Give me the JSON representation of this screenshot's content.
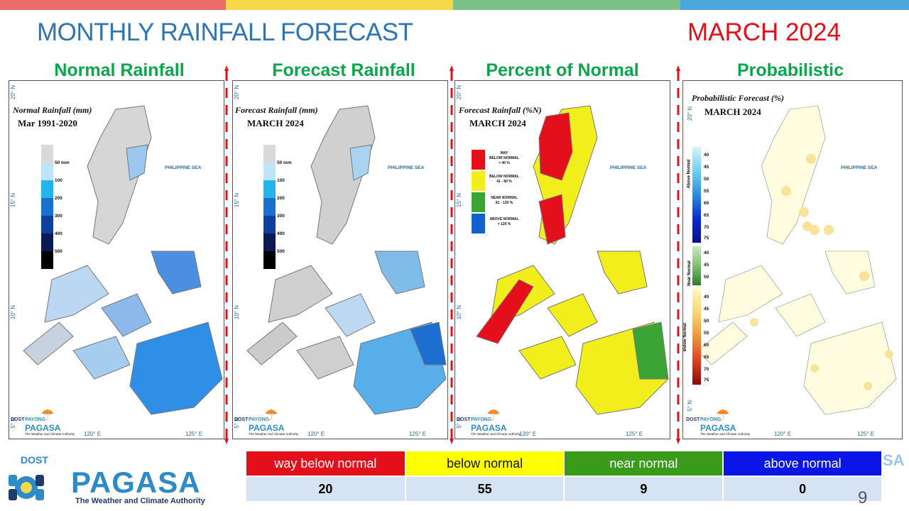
{
  "header": {
    "title": "MONTHLY RAINFALL FORECAST",
    "date": "MARCH 2024",
    "stripe_colors": [
      "#ec6b6b",
      "#f5d94b",
      "#7cc08a",
      "#4aa8dc"
    ]
  },
  "panels": [
    {
      "title": "Normal Rainfall",
      "map_title": "Normal Rainfall (mm)",
      "map_sub": "Mar 1991-2020"
    },
    {
      "title": "Forecast Rainfall",
      "map_title": "Forecast Rainfall (mm)",
      "map_sub": "MARCH 2024"
    },
    {
      "title": "Percent of Normal",
      "map_title": "Forecast Rainfall (%N)",
      "map_sub": "MARCH 2024"
    },
    {
      "title": "Probabilistic",
      "map_title": "Probabilistic Forecast (%)",
      "map_sub": "MARCH 2024"
    }
  ],
  "map": {
    "sea_label": "PHILIPPINE SEA",
    "lat_20": "20° N",
    "lat_15": "15° N",
    "lat_10": "10° N",
    "lat_5": "5° N",
    "lon_120": "120° E",
    "lon_125": "125° E"
  },
  "rain_legend": {
    "labels": [
      "50 mm",
      "100",
      "200",
      "300",
      "400",
      "500"
    ],
    "colors": [
      "#d9d9d9",
      "#bfe3f7",
      "#22b5ea",
      "#1a6fd0",
      "#0f3f9e",
      "#0b1a55",
      "#000000"
    ]
  },
  "pct_legend": [
    {
      "l1": "WAY",
      "l2": "BELOW NORMAL",
      "l3": "< 40 %",
      "color": "#e3101b"
    },
    {
      "l1": "BELOW NORMAL",
      "l2": "41 - 80 %",
      "l3": "",
      "color": "#f2ee1c"
    },
    {
      "l1": "NEAR NORMAL",
      "l2": "81 - 120 %",
      "l3": "",
      "color": "#3aa534"
    },
    {
      "l1": "ABOVE NORMAL",
      "l2": "> 120 %",
      "l3": "",
      "color": "#1560c9"
    }
  ],
  "prob_legend": {
    "above_label": "Above Normal",
    "near_label": "Near Normal",
    "below_label": "Below Normal",
    "above_values": [
      "40",
      "45",
      "50",
      "55",
      "60",
      "65",
      "70",
      "75"
    ],
    "near_values": [
      "40",
      "45",
      "50"
    ],
    "below_values": [
      "40",
      "45",
      "50",
      "55",
      "60",
      "65",
      "70",
      "75"
    ]
  },
  "mini_logo": {
    "dost": "DOST",
    "payong": "PAYONG",
    "pagasa": "PAGASA",
    "tag": "The Weather and Climate Authority"
  },
  "main_logo": {
    "dost": "DOST",
    "pagasa": "PAGASA",
    "tag": "The Weather and Climate Authority"
  },
  "summary": {
    "headers": [
      {
        "label": "way below normal",
        "bg": "#e3101b",
        "fg": "#ffffff"
      },
      {
        "label": "below normal",
        "bg": "#ffff00",
        "fg": "#111111"
      },
      {
        "label": "near normal",
        "bg": "#3a9a1a",
        "fg": "#ffffff"
      },
      {
        "label": "above normal",
        "bg": "#0a16e8",
        "fg": "#ffffff"
      }
    ],
    "values": [
      "20",
      "55",
      "9",
      "0"
    ]
  },
  "slide_number": "9",
  "right_logo_text": "SA"
}
